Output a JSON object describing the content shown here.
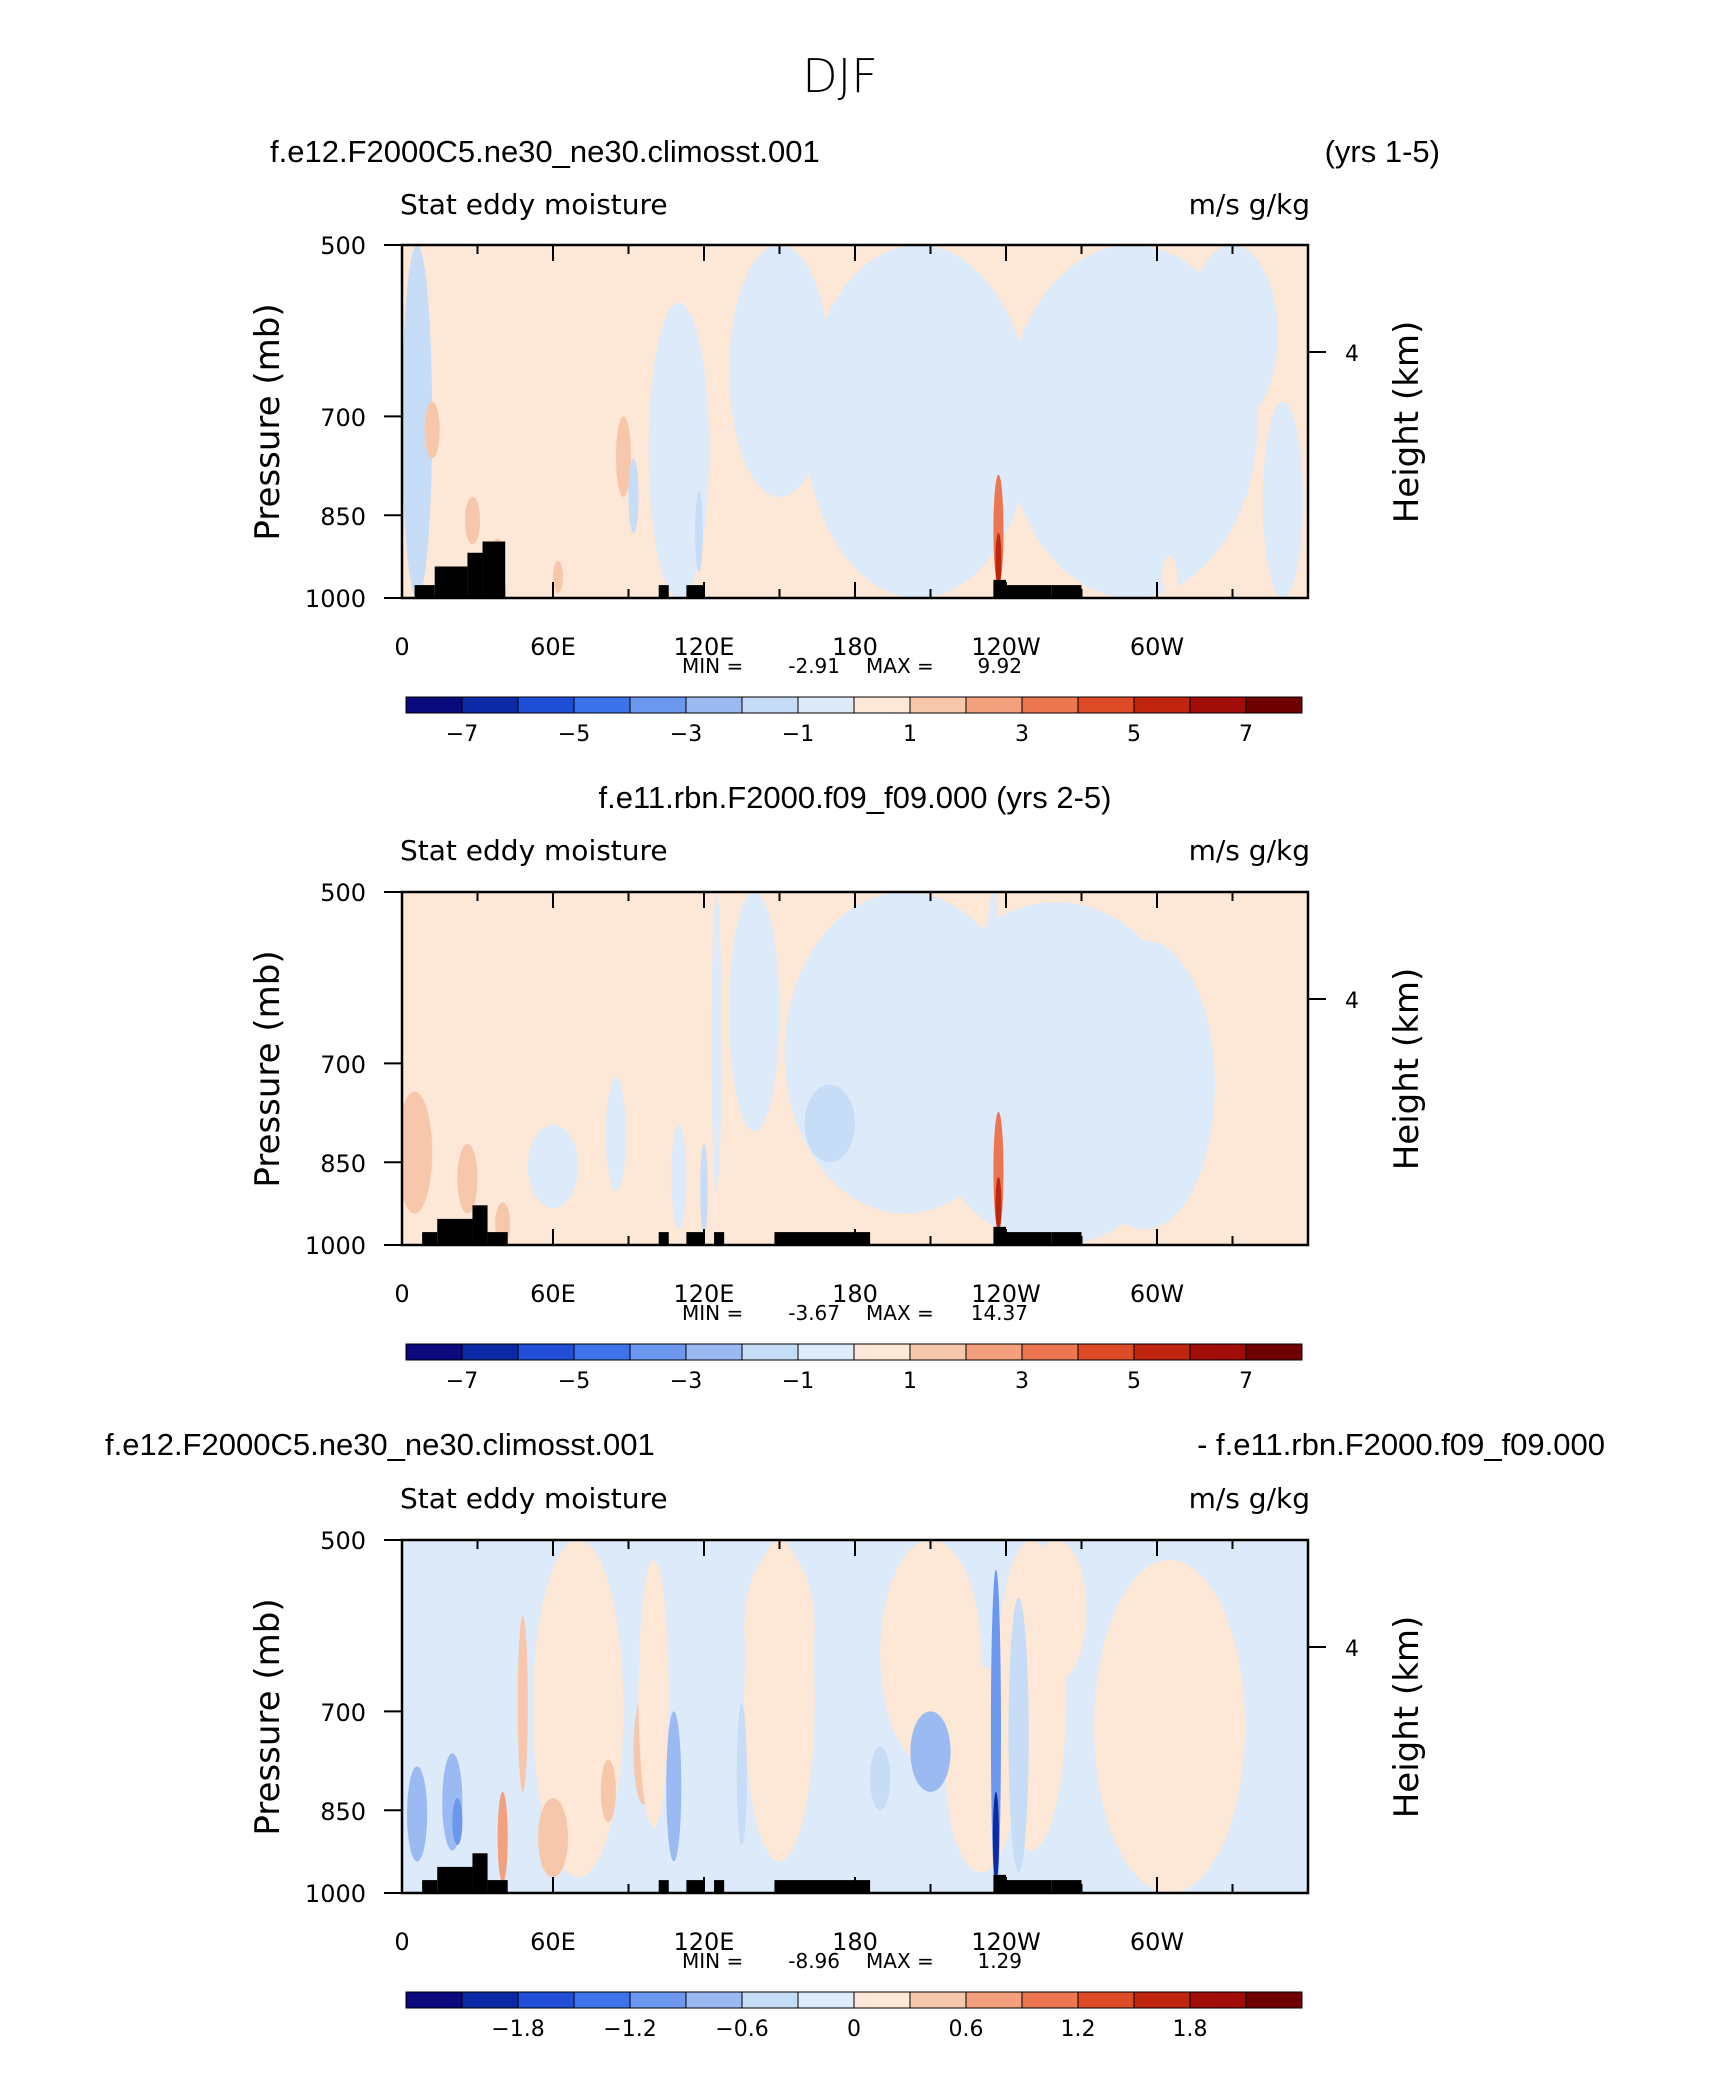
{
  "page": {
    "title": "DJF"
  },
  "colors": {
    "bg": "#ffffff",
    "land": "#000000",
    "palette": [
      "#0a0a7d",
      "#0c2aa6",
      "#1f4fd6",
      "#3d73ea",
      "#6b97ee",
      "#9bbaf2",
      "#c7dcf6",
      "#dceaf9",
      "#fde7d6",
      "#f7c7ac",
      "#f3a07f",
      "#ec7650",
      "#dd4a26",
      "#c0260f",
      "#a00c08",
      "#6e0000"
    ]
  },
  "chart_data": [
    {
      "type": "contour",
      "case_title_left": "f.e12.F2000C5.ne30_ne30.climosst.001",
      "case_title_right": "(yrs 1-5)",
      "subtitle_left": "Stat eddy moisture",
      "subtitle_right": "m/s g/kg",
      "ylabel": "Pressure (mb)",
      "ylabel_right": "Height (km)",
      "yticks": [
        "500",
        "700",
        "850",
        "1000"
      ],
      "yticks_right": [
        "4"
      ],
      "xticks": [
        "0",
        "60E",
        "120E",
        "180",
        "120W",
        "60W"
      ],
      "xlim": [
        0,
        360
      ],
      "ylim": [
        1000,
        500
      ],
      "stats": {
        "min_label": "MIN =",
        "min": "-2.91",
        "max_label": "MAX =",
        "max": "9.92"
      },
      "colorbar_labels": [
        "−7",
        "−5",
        "−3",
        "−1",
        "1",
        "3",
        "5",
        "7"
      ],
      "levels": [
        -7,
        -6,
        -5,
        -4,
        -3,
        -2,
        -1,
        0,
        1,
        2,
        3,
        4,
        5,
        6,
        7
      ],
      "variant": "a"
    },
    {
      "type": "contour",
      "case_title": "f.e11.rbn.F2000.f09_f09.000 (yrs 2-5)",
      "subtitle_left": "Stat eddy moisture",
      "subtitle_right": "m/s g/kg",
      "ylabel": "Pressure (mb)",
      "ylabel_right": "Height (km)",
      "yticks": [
        "500",
        "700",
        "850",
        "1000"
      ],
      "yticks_right": [
        "4"
      ],
      "xticks": [
        "0",
        "60E",
        "120E",
        "180",
        "120W",
        "60W"
      ],
      "xlim": [
        0,
        360
      ],
      "ylim": [
        1000,
        500
      ],
      "stats": {
        "min_label": "MIN =",
        "min": "-3.67",
        "max_label": "MAX =",
        "max": "14.37"
      },
      "colorbar_labels": [
        "−7",
        "−5",
        "−3",
        "−1",
        "1",
        "3",
        "5",
        "7"
      ],
      "levels": [
        -7,
        -6,
        -5,
        -4,
        -3,
        -2,
        -1,
        0,
        1,
        2,
        3,
        4,
        5,
        6,
        7
      ],
      "variant": "b"
    },
    {
      "type": "contour",
      "case_title_left": "f.e12.F2000C5.ne30_ne30.climosst.001",
      "case_title_right": "- f.e11.rbn.F2000.f09_f09.000",
      "subtitle_left": "Stat eddy moisture",
      "subtitle_right": "m/s g/kg",
      "ylabel": "Pressure (mb)",
      "ylabel_right": "Height (km)",
      "yticks": [
        "500",
        "700",
        "850",
        "1000"
      ],
      "yticks_right": [
        "4"
      ],
      "xticks": [
        "0",
        "60E",
        "120E",
        "180",
        "120W",
        "60W"
      ],
      "xlim": [
        0,
        360
      ],
      "ylim": [
        1000,
        500
      ],
      "stats": {
        "min_label": "MIN =",
        "min": "-8.96",
        "max_label": "MAX =",
        "max": "1.29"
      },
      "colorbar_labels": [
        "−1.8",
        "−1.2",
        "−0.6",
        "0",
        "0.6",
        "1.2",
        "1.8"
      ],
      "levels": [
        -2.1,
        -1.8,
        -1.5,
        -1.2,
        -0.9,
        -0.6,
        -0.3,
        0,
        0.3,
        0.6,
        0.9,
        1.2,
        1.5,
        1.8,
        2.1
      ],
      "variant": "diff"
    }
  ]
}
